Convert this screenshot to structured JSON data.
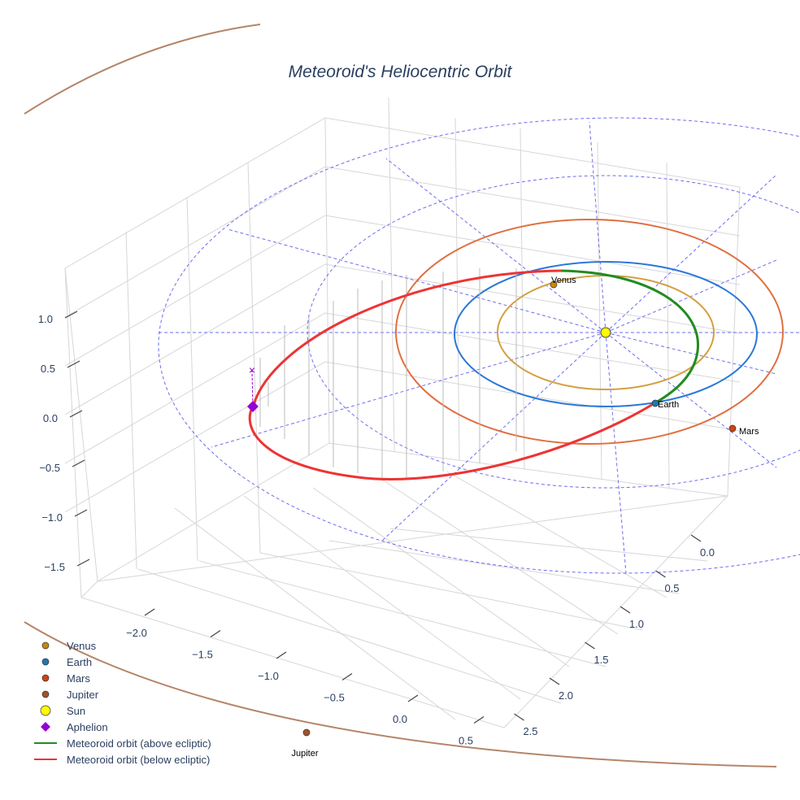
{
  "chart_data": {
    "type": "scatter3d",
    "title": "Meteoroid's Heliocentric Orbit",
    "axes": {
      "x": {
        "ticks": [
          "−2.0",
          "−1.5",
          "−1.0",
          "−0.5",
          "0.0",
          "0.5"
        ]
      },
      "y": {
        "ticks": [
          "0.0",
          "0.5",
          "1.0",
          "1.5",
          "2.0",
          "2.5"
        ]
      },
      "z": {
        "ticks": [
          "1.0",
          "0.5",
          "0.0",
          "−0.5",
          "−1.0",
          "−1.5"
        ]
      }
    },
    "bodies": [
      {
        "name": "Venus",
        "label": "Venus",
        "color": "#c8860a",
        "orbit_color": "#d4a040"
      },
      {
        "name": "Earth",
        "label": "Earth",
        "color": "#1f77b4",
        "orbit_color": "#2a78d8"
      },
      {
        "name": "Mars",
        "label": "Mars",
        "color": "#cc4411",
        "orbit_color": "#e07040"
      },
      {
        "name": "Jupiter",
        "label": "Jupiter",
        "color": "#a0522d",
        "orbit_color": "#b5856a"
      },
      {
        "name": "Sun",
        "label": "",
        "color": "#ffff00"
      }
    ],
    "legend": {
      "position": "bottom-left",
      "items": [
        {
          "label": "Venus",
          "symbol": "circle",
          "color": "#c8860a"
        },
        {
          "label": "Earth",
          "symbol": "circle",
          "color": "#1f77b4"
        },
        {
          "label": "Mars",
          "symbol": "circle",
          "color": "#cc4411"
        },
        {
          "label": "Jupiter",
          "symbol": "circle",
          "color": "#a0522d"
        },
        {
          "label": "Sun",
          "symbol": "circle-large",
          "color": "#ffff00"
        },
        {
          "label": "Aphelion",
          "symbol": "diamond",
          "color": "#9400d3"
        },
        {
          "label": "Meteoroid orbit (above ecliptic)",
          "symbol": "line",
          "color": "#228b22"
        },
        {
          "label": "Meteoroid orbit (below ecliptic)",
          "symbol": "line",
          "color": "#ee3333"
        }
      ]
    }
  }
}
